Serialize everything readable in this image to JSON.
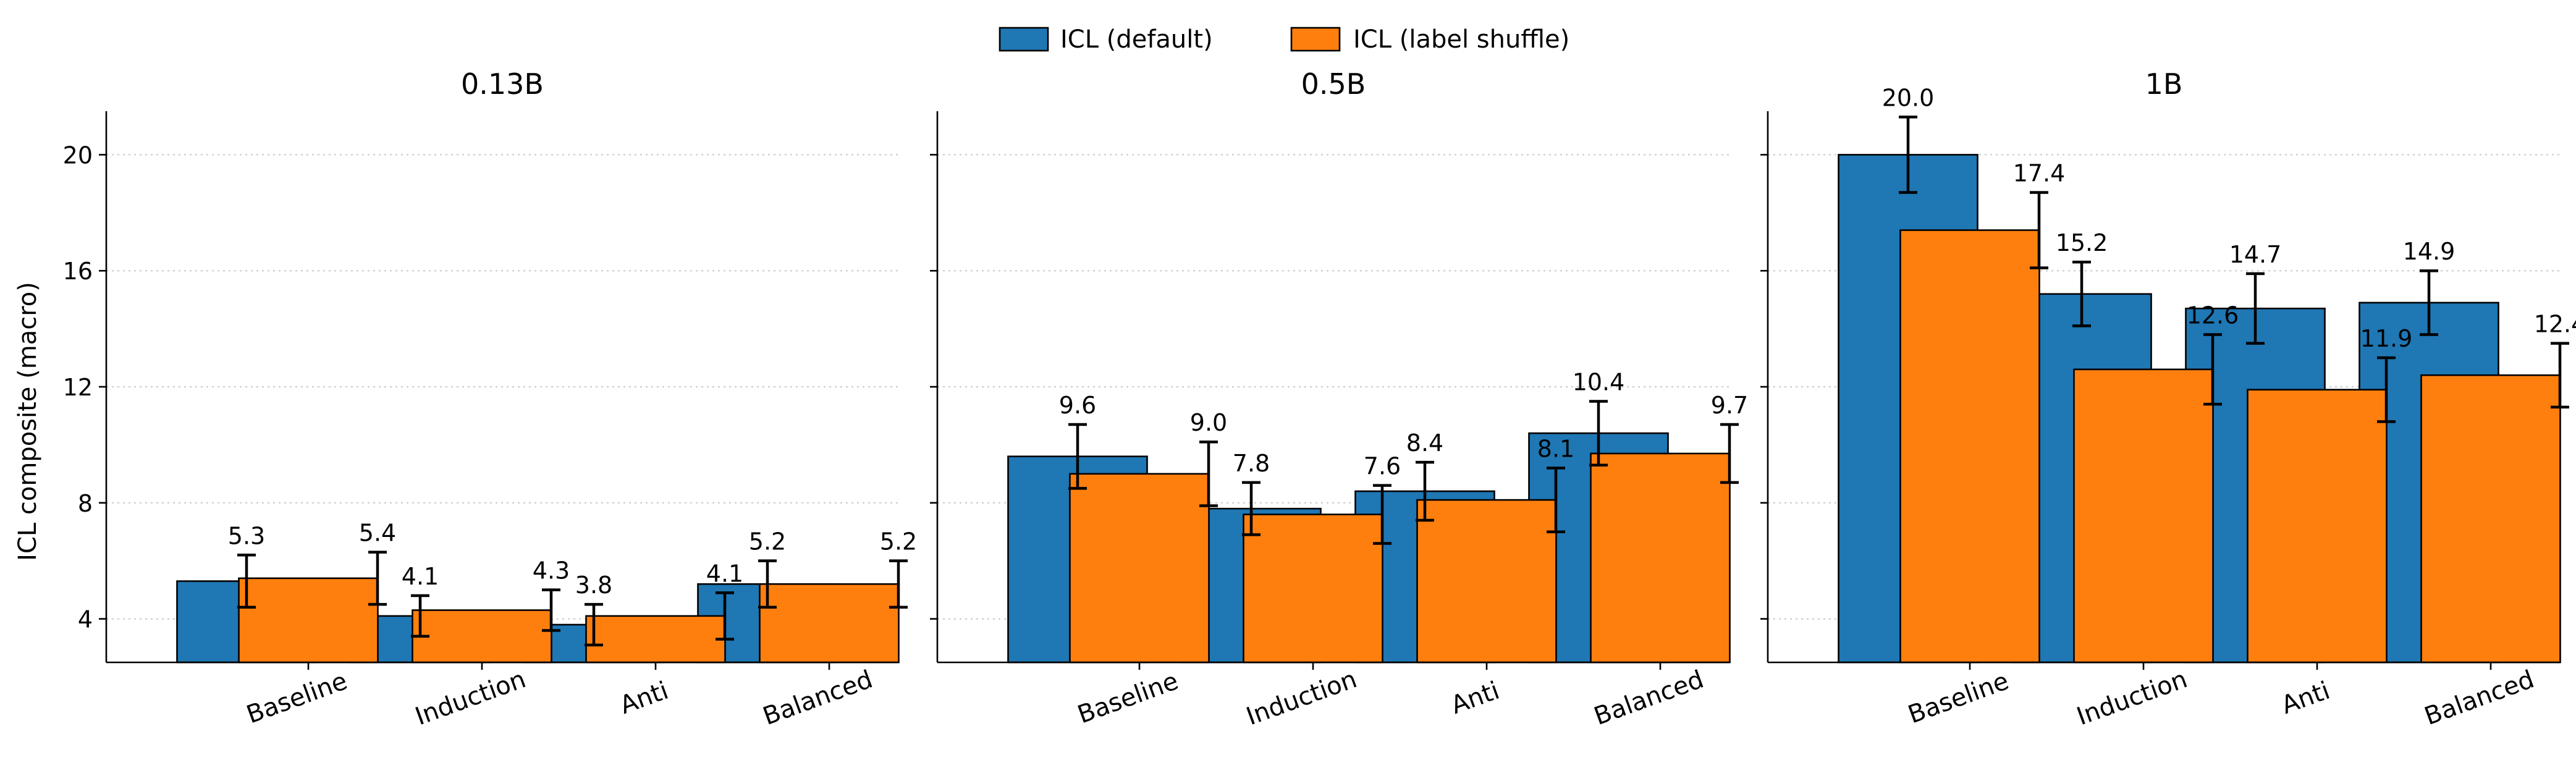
{
  "chart_data": {
    "type": "bar",
    "ylabel": "ICL composite (macro)",
    "ylim": [
      2.5,
      21.5
    ],
    "yticks": [
      4,
      8,
      12,
      16,
      20
    ],
    "grid": "y-dotted",
    "legend_position": "top-center",
    "categories": [
      "Baseline",
      "Induction",
      "Anti",
      "Balanced"
    ],
    "series_meta": [
      {
        "name": "ICL (default)",
        "color": "#1f77b4"
      },
      {
        "name": "ICL (label shuffle)",
        "color": "#ff7f0e"
      }
    ],
    "panels": [
      {
        "title": "0.13B",
        "series": [
          {
            "name": "ICL (default)",
            "values": [
              5.3,
              4.1,
              3.8,
              5.2
            ],
            "errors": [
              0.9,
              0.7,
              0.7,
              0.8
            ],
            "labels": [
              "5.3",
              "4.1",
              "3.8",
              "5.2"
            ]
          },
          {
            "name": "ICL (label shuffle)",
            "values": [
              5.4,
              4.3,
              4.1,
              5.2
            ],
            "errors": [
              0.9,
              0.7,
              0.8,
              0.8
            ],
            "labels": [
              "5.4",
              "4.3",
              "4.1",
              "5.2"
            ]
          }
        ]
      },
      {
        "title": "0.5B",
        "series": [
          {
            "name": "ICL (default)",
            "values": [
              9.6,
              7.8,
              8.4,
              10.4
            ],
            "errors": [
              1.1,
              0.9,
              1.0,
              1.1
            ],
            "labels": [
              "9.6",
              "7.8",
              "8.4",
              "10.4"
            ]
          },
          {
            "name": "ICL (label shuffle)",
            "values": [
              9.0,
              7.6,
              8.1,
              9.7
            ],
            "errors": [
              1.1,
              1.0,
              1.1,
              1.0
            ],
            "labels": [
              "9.0",
              "7.6",
              "8.1",
              "9.7"
            ]
          }
        ]
      },
      {
        "title": "1B",
        "series": [
          {
            "name": "ICL (default)",
            "values": [
              20.0,
              15.2,
              14.7,
              14.9
            ],
            "errors": [
              1.3,
              1.1,
              1.2,
              1.1
            ],
            "labels": [
              "20.0",
              "15.2",
              "14.7",
              "14.9"
            ]
          },
          {
            "name": "ICL (label shuffle)",
            "values": [
              17.4,
              12.6,
              11.9,
              12.4
            ],
            "errors": [
              1.3,
              1.2,
              1.1,
              1.1
            ],
            "labels": [
              "17.4",
              "12.6",
              "11.9",
              "12.4"
            ]
          }
        ]
      }
    ]
  }
}
